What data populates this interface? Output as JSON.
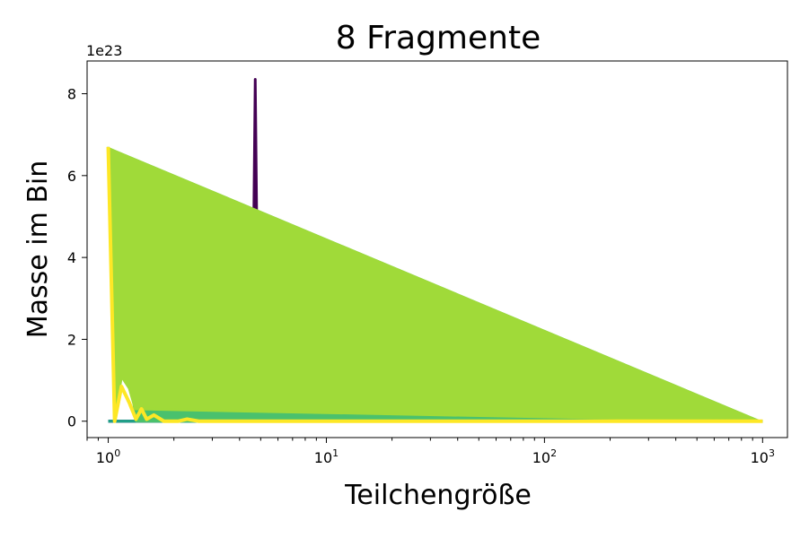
{
  "chart_data": {
    "type": "area",
    "title": "8 Fragmente",
    "xlabel": "Teilchengröße",
    "ylabel": "Masse im Bin",
    "x_scale": "log",
    "xlim": [
      0.8,
      1300
    ],
    "ylim": [
      -0.4,
      8.8
    ],
    "y_multiplier_label": "1e23",
    "x_ticks": [
      {
        "value": 1,
        "base": "10",
        "exp": "0"
      },
      {
        "value": 10,
        "base": "10",
        "exp": "1"
      },
      {
        "value": 100,
        "base": "10",
        "exp": "2"
      },
      {
        "value": 1000,
        "base": "10",
        "exp": "3"
      }
    ],
    "y_ticks": [
      {
        "value": 0,
        "label": "0"
      },
      {
        "value": 2,
        "label": "2"
      },
      {
        "value": 4,
        "label": "4"
      },
      {
        "value": 6,
        "label": "6"
      },
      {
        "value": 8,
        "label": "8"
      }
    ],
    "grid": false,
    "legend": "none",
    "colormap": "viridis",
    "series": [
      {
        "color": "#440154",
        "points": [
          [
            1.0,
            0
          ],
          [
            1.25,
            0
          ],
          [
            4.55,
            0
          ],
          [
            4.72,
            8.35
          ],
          [
            4.9,
            0
          ],
          [
            1000,
            0
          ]
        ]
      },
      {
        "color": "#46337e",
        "points": [
          [
            1.0,
            0
          ],
          [
            2.75,
            0
          ],
          [
            2.88,
            1.95
          ],
          [
            3.02,
            0
          ],
          [
            1000,
            0
          ]
        ]
      },
      {
        "color": "#365c8d",
        "points": [
          [
            1.0,
            0
          ],
          [
            2.18,
            0
          ],
          [
            2.33,
            2.35
          ],
          [
            2.5,
            1.1
          ],
          [
            2.62,
            0
          ],
          [
            1000,
            0
          ]
        ]
      },
      {
        "color": "#277f8e",
        "points": [
          [
            1.0,
            0
          ],
          [
            1.5,
            0
          ],
          [
            1.62,
            0.6
          ],
          [
            1.8,
            0
          ],
          [
            1000,
            0
          ]
        ]
      },
      {
        "color": "#1fa187",
        "points": [
          [
            1.0,
            0
          ],
          [
            1.35,
            0
          ],
          [
            1.43,
            1.3
          ],
          [
            1.52,
            0
          ],
          [
            1000,
            0
          ]
        ]
      },
      {
        "color": "#4ac16d",
        "points": [
          [
            1.0,
            6.7
          ],
          [
            1.07,
            0
          ],
          [
            1.15,
            1.4
          ],
          [
            1.25,
            1.1
          ],
          [
            1.35,
            0
          ],
          [
            1000,
            0
          ]
        ]
      },
      {
        "color": "#a0da39",
        "points": [
          [
            1.0,
            6.7
          ],
          [
            1.07,
            0
          ],
          [
            1.15,
            1.1
          ],
          [
            1.25,
            0.8
          ],
          [
            1.33,
            0.3
          ],
          [
            1000,
            0
          ]
        ]
      },
      {
        "color": "#fde725",
        "points": [
          [
            1.0,
            6.7
          ],
          [
            1.07,
            0
          ],
          [
            1.15,
            0.85
          ],
          [
            1.25,
            0.45
          ],
          [
            1.34,
            0.05
          ],
          [
            1.42,
            0.3
          ],
          [
            1.5,
            0.05
          ],
          [
            1.62,
            0.15
          ],
          [
            1.8,
            0
          ],
          [
            2.1,
            0
          ],
          [
            2.3,
            0.05
          ],
          [
            2.6,
            0
          ],
          [
            1000,
            0
          ]
        ]
      }
    ]
  }
}
